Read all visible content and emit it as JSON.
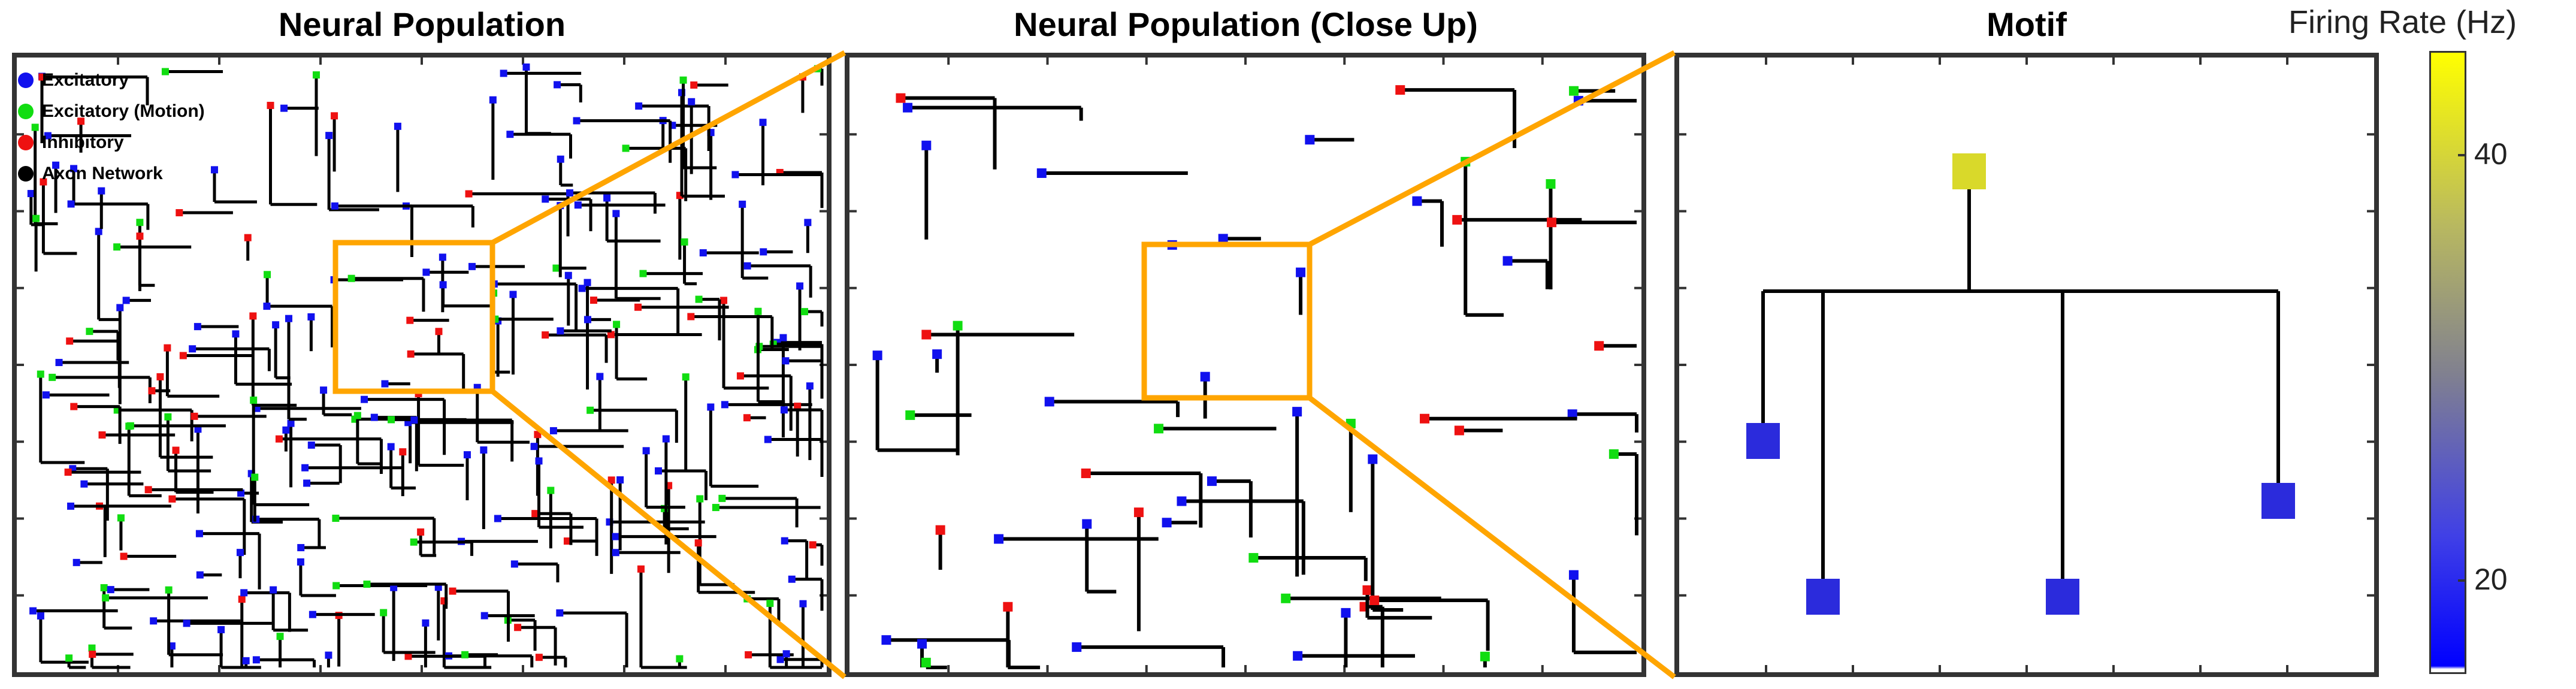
{
  "panels": {
    "population": {
      "title": "Neural Population"
    },
    "closeup": {
      "title": "Neural Population (Close Up)"
    },
    "motif": {
      "title": "Motif"
    }
  },
  "legend": [
    {
      "label": "Excitatory",
      "color": "#1111ee"
    },
    {
      "label": "Excitatory (Motion)",
      "color": "#11dd11"
    },
    {
      "label": "Inhibitory",
      "color": "#ee1111"
    },
    {
      "label": "Axon Network",
      "color": "#000000"
    }
  ],
  "colorbar": {
    "title": "Firing Rate (Hz)",
    "ticks": [
      "40",
      "20"
    ]
  },
  "colors": {
    "zoom_box": "#ffa500",
    "excitatory": "#1111ee",
    "motion": "#11dd11",
    "inhibitory": "#ee1111",
    "axon": "#000000",
    "motif_high": "#d9d92a",
    "motif_low": "#2b2bdc"
  }
}
